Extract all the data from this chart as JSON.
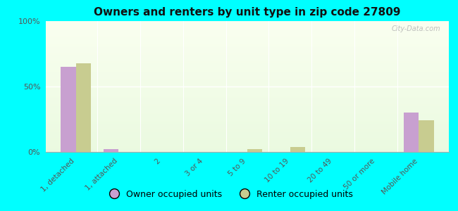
{
  "title": "Owners and renters by unit type in zip code 27809",
  "categories": [
    "1, detached",
    "1, attached",
    "2",
    "3 or 4",
    "5 to 9",
    "10 to 19",
    "20 to 49",
    "50 or more",
    "Mobile home"
  ],
  "owner_values": [
    65,
    2,
    0,
    0,
    0,
    0,
    0,
    0,
    30
  ],
  "renter_values": [
    68,
    0,
    0,
    0,
    2,
    4,
    0,
    0,
    24
  ],
  "owner_color": "#c8a0d0",
  "renter_color": "#c8cc90",
  "plot_bg_color": "#edf5e0",
  "outer_bg": "#00ffff",
  "ylim": [
    0,
    100
  ],
  "yticks": [
    0,
    50,
    100
  ],
  "ytick_labels": [
    "0%",
    "50%",
    "100%"
  ],
  "legend_owner": "Owner occupied units",
  "legend_renter": "Renter occupied units",
  "bar_width": 0.35,
  "watermark": "City-Data.com"
}
